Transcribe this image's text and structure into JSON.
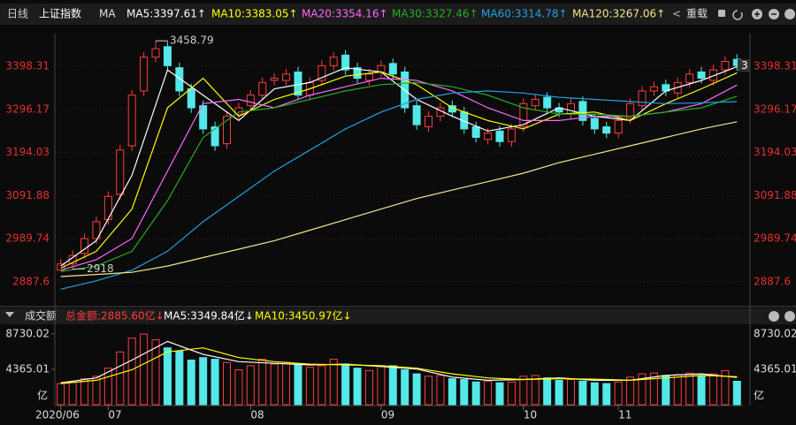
{
  "header": {
    "period": "日线",
    "index_name": "上证指数",
    "ma_label": "MA",
    "reload": "重载"
  },
  "chart_data": [
    {
      "type": "candlestick",
      "categories": [
        "2020/06",
        null,
        null,
        null,
        "07",
        null,
        null,
        null,
        null,
        null,
        null,
        null,
        null,
        null,
        null,
        null,
        "08",
        null,
        null,
        null,
        null,
        null,
        null,
        null,
        null,
        null,
        null,
        "09",
        null,
        null,
        null,
        null,
        null,
        null,
        null,
        null,
        null,
        null,
        null,
        "10",
        null,
        null,
        null,
        null,
        null,
        null,
        null,
        "11",
        null,
        null,
        null,
        null,
        null,
        null,
        null,
        null,
        null,
        null
      ],
      "open": [
        2915,
        2930,
        2955,
        2990,
        3035,
        3095,
        3210,
        3340,
        3420,
        3445,
        3395,
        3345,
        3305,
        3255,
        3215,
        3285,
        3305,
        3330,
        3365,
        3365,
        3385,
        3330,
        3365,
        3400,
        3425,
        3395,
        3365,
        3385,
        3405,
        3385,
        3305,
        3255,
        3280,
        3305,
        3290,
        3255,
        3225,
        3245,
        3220,
        3255,
        3305,
        3325,
        3300,
        3285,
        3315,
        3275,
        3255,
        3240,
        3275,
        3305,
        3340,
        3355,
        3335,
        3360,
        3385,
        3365,
        3390,
        3415
      ],
      "high": [
        2942,
        2962,
        3002,
        3042,
        3102,
        3212,
        3342,
        3432,
        3458.79,
        3457,
        3407,
        3357,
        3317,
        3267,
        3292,
        3312,
        3342,
        3372,
        3382,
        3392,
        3397,
        3372,
        3412,
        3432,
        3437,
        3407,
        3392,
        3412,
        3417,
        3397,
        3317,
        3292,
        3312,
        3317,
        3302,
        3267,
        3252,
        3257,
        3262,
        3322,
        3332,
        3337,
        3312,
        3322,
        3327,
        3287,
        3267,
        3282,
        3322,
        3352,
        3362,
        3367,
        3372,
        3392,
        3397,
        3402,
        3422,
        3427
      ],
      "low": [
        2919.04,
        2918,
        2943,
        2978,
        3023,
        3083,
        3198,
        3328,
        3408,
        3388,
        3328,
        3288,
        3238,
        3198,
        3203,
        3273,
        3293,
        3318,
        3353,
        3353,
        3318,
        3318,
        3353,
        3388,
        3378,
        3358,
        3353,
        3373,
        3368,
        3288,
        3248,
        3243,
        3268,
        3278,
        3238,
        3218,
        3213,
        3208,
        3208,
        3243,
        3293,
        3288,
        3278,
        3273,
        3258,
        3238,
        3228,
        3228,
        3263,
        3293,
        3328,
        3328,
        3323,
        3348,
        3358,
        3353,
        3378,
        3388
      ],
      "close": [
        2930,
        2950,
        2990,
        3030,
        3090,
        3200,
        3330,
        3420,
        3440,
        3400,
        3340,
        3300,
        3250,
        3210,
        3280,
        3300,
        3330,
        3360,
        3370,
        3380,
        3330,
        3360,
        3400,
        3420,
        3390,
        3370,
        3380,
        3400,
        3380,
        3300,
        3260,
        3280,
        3300,
        3290,
        3250,
        3230,
        3240,
        3220,
        3250,
        3310,
        3320,
        3300,
        3290,
        3310,
        3270,
        3250,
        3240,
        3270,
        3310,
        3340,
        3350,
        3340,
        3360,
        3380,
        3370,
        3390,
        3410,
        3400
      ],
      "last_tag": "3",
      "up_color": "#ff3c3c",
      "down_color": "#54e8e8",
      "ylim": [
        2833,
        3476
      ],
      "yticks": [
        2887.6,
        2989.74,
        3091.88,
        3194.03,
        3296.17,
        3398.31
      ],
      "grid": true,
      "series": [
        {
          "name": "MA5",
          "legend_label": "MA5:3397.61↑",
          "color": "#ffffff",
          "x": [
            0,
            3,
            6,
            9,
            12,
            15,
            18,
            21,
            24,
            27,
            30,
            33,
            36,
            39,
            42,
            45,
            48,
            51,
            54,
            57
          ],
          "values": [
            2925,
            2985,
            3140,
            3390,
            3330,
            3270,
            3345,
            3360,
            3395,
            3385,
            3320,
            3280,
            3245,
            3260,
            3300,
            3280,
            3270,
            3340,
            3365,
            3397.61
          ]
        },
        {
          "name": "MA10",
          "legend_label": "MA10:3383.05↑",
          "color": "#ffff00",
          "x": [
            0,
            3,
            6,
            9,
            12,
            15,
            18,
            21,
            24,
            27,
            30,
            33,
            36,
            39,
            42,
            45,
            48,
            51,
            54,
            57
          ],
          "values": [
            2920,
            2960,
            3060,
            3300,
            3370,
            3280,
            3320,
            3345,
            3375,
            3385,
            3355,
            3300,
            3270,
            3250,
            3285,
            3290,
            3270,
            3310,
            3345,
            3383.05
          ]
        },
        {
          "name": "MA20",
          "legend_label": "MA20:3354.16↑",
          "color": "#ff66ff",
          "x": [
            0,
            3,
            6,
            9,
            12,
            15,
            18,
            21,
            24,
            27,
            30,
            33,
            36,
            39,
            42,
            45,
            48,
            51,
            54,
            57
          ],
          "values": [
            2915,
            2940,
            2990,
            3150,
            3310,
            3320,
            3300,
            3330,
            3350,
            3370,
            3365,
            3340,
            3300,
            3270,
            3270,
            3280,
            3280,
            3290,
            3310,
            3354.16
          ]
        },
        {
          "name": "MA30",
          "legend_label": "MA30:3327.46↑",
          "color": "#22b022",
          "x": [
            0,
            3,
            6,
            9,
            12,
            15,
            18,
            21,
            24,
            27,
            30,
            33,
            36,
            39,
            42,
            45,
            48,
            51,
            54,
            57
          ],
          "values": [
            2912,
            2925,
            2960,
            3080,
            3230,
            3290,
            3300,
            3320,
            3340,
            3355,
            3360,
            3350,
            3330,
            3300,
            3285,
            3285,
            3280,
            3290,
            3300,
            3327.46
          ]
        },
        {
          "name": "MA60",
          "legend_label": "MA60:3314.78↑",
          "color": "#1ea0e6",
          "x": [
            0,
            3,
            6,
            9,
            12,
            15,
            18,
            21,
            24,
            27,
            30,
            33,
            36,
            39,
            42,
            45,
            48,
            51,
            54,
            57
          ],
          "values": [
            2870,
            2890,
            2915,
            2960,
            3030,
            3090,
            3150,
            3200,
            3250,
            3290,
            3320,
            3335,
            3340,
            3335,
            3325,
            3320,
            3315,
            3310,
            3312,
            3314.78
          ]
        },
        {
          "name": "MA120",
          "legend_label": "MA120:3267.06↑",
          "color": "#f0e68c",
          "x": [
            0,
            3,
            6,
            9,
            12,
            15,
            18,
            21,
            24,
            27,
            30,
            33,
            36,
            39,
            42,
            45,
            48,
            51,
            54,
            57
          ],
          "values": [
            2900,
            2905,
            2910,
            2925,
            2945,
            2965,
            2985,
            3010,
            3035,
            3060,
            3085,
            3105,
            3125,
            3145,
            3170,
            3190,
            3210,
            3230,
            3250,
            3267.06
          ]
        }
      ]
    },
    {
      "type": "bar",
      "title": "成交额",
      "total_label": "总金额:2885.60亿↓",
      "unit": "亿",
      "values": [
        2600,
        2800,
        3200,
        3500,
        4500,
        6500,
        8200,
        8700,
        8000,
        7000,
        6600,
        5500,
        5800,
        5600,
        5200,
        4300,
        4800,
        5600,
        5000,
        5200,
        4900,
        4600,
        4800,
        5600,
        5000,
        4500,
        4200,
        4700,
        4800,
        4300,
        3800,
        3500,
        3600,
        3200,
        3100,
        2800,
        2900,
        2700,
        2800,
        3500,
        3600,
        3300,
        3000,
        3100,
        2900,
        2700,
        2600,
        2800,
        3400,
        3800,
        3900,
        3600,
        3700,
        3900,
        3600,
        3800,
        4200,
        2885.6
      ],
      "ylim": [
        0,
        9800
      ],
      "yticks": [
        4365.01,
        8730.02
      ],
      "series": [
        {
          "name": "MA5",
          "legend_label": "MA5:3349.84亿↓",
          "color": "#ffffff",
          "x": [
            0,
            3,
            6,
            9,
            12,
            15,
            18,
            21,
            24,
            27,
            30,
            33,
            36,
            39,
            42,
            45,
            48,
            51,
            54,
            57
          ],
          "values": [
            2700,
            3300,
            5500,
            7800,
            6200,
            5300,
            5100,
            4900,
            5000,
            4700,
            4400,
            3400,
            3000,
            3100,
            3300,
            3000,
            3000,
            3600,
            3800,
            3349.84
          ]
        },
        {
          "name": "MA10",
          "legend_label": "MA10:3450.97亿↓",
          "color": "#ffff00",
          "x": [
            0,
            3,
            6,
            9,
            12,
            15,
            18,
            21,
            24,
            27,
            30,
            33,
            36,
            39,
            42,
            45,
            48,
            51,
            54,
            57
          ],
          "values": [
            2600,
            3000,
            4300,
            6500,
            7000,
            5800,
            5300,
            5000,
            4900,
            4800,
            4500,
            3800,
            3300,
            3100,
            3200,
            3150,
            3000,
            3300,
            3600,
            3450.97
          ]
        }
      ]
    }
  ]
}
